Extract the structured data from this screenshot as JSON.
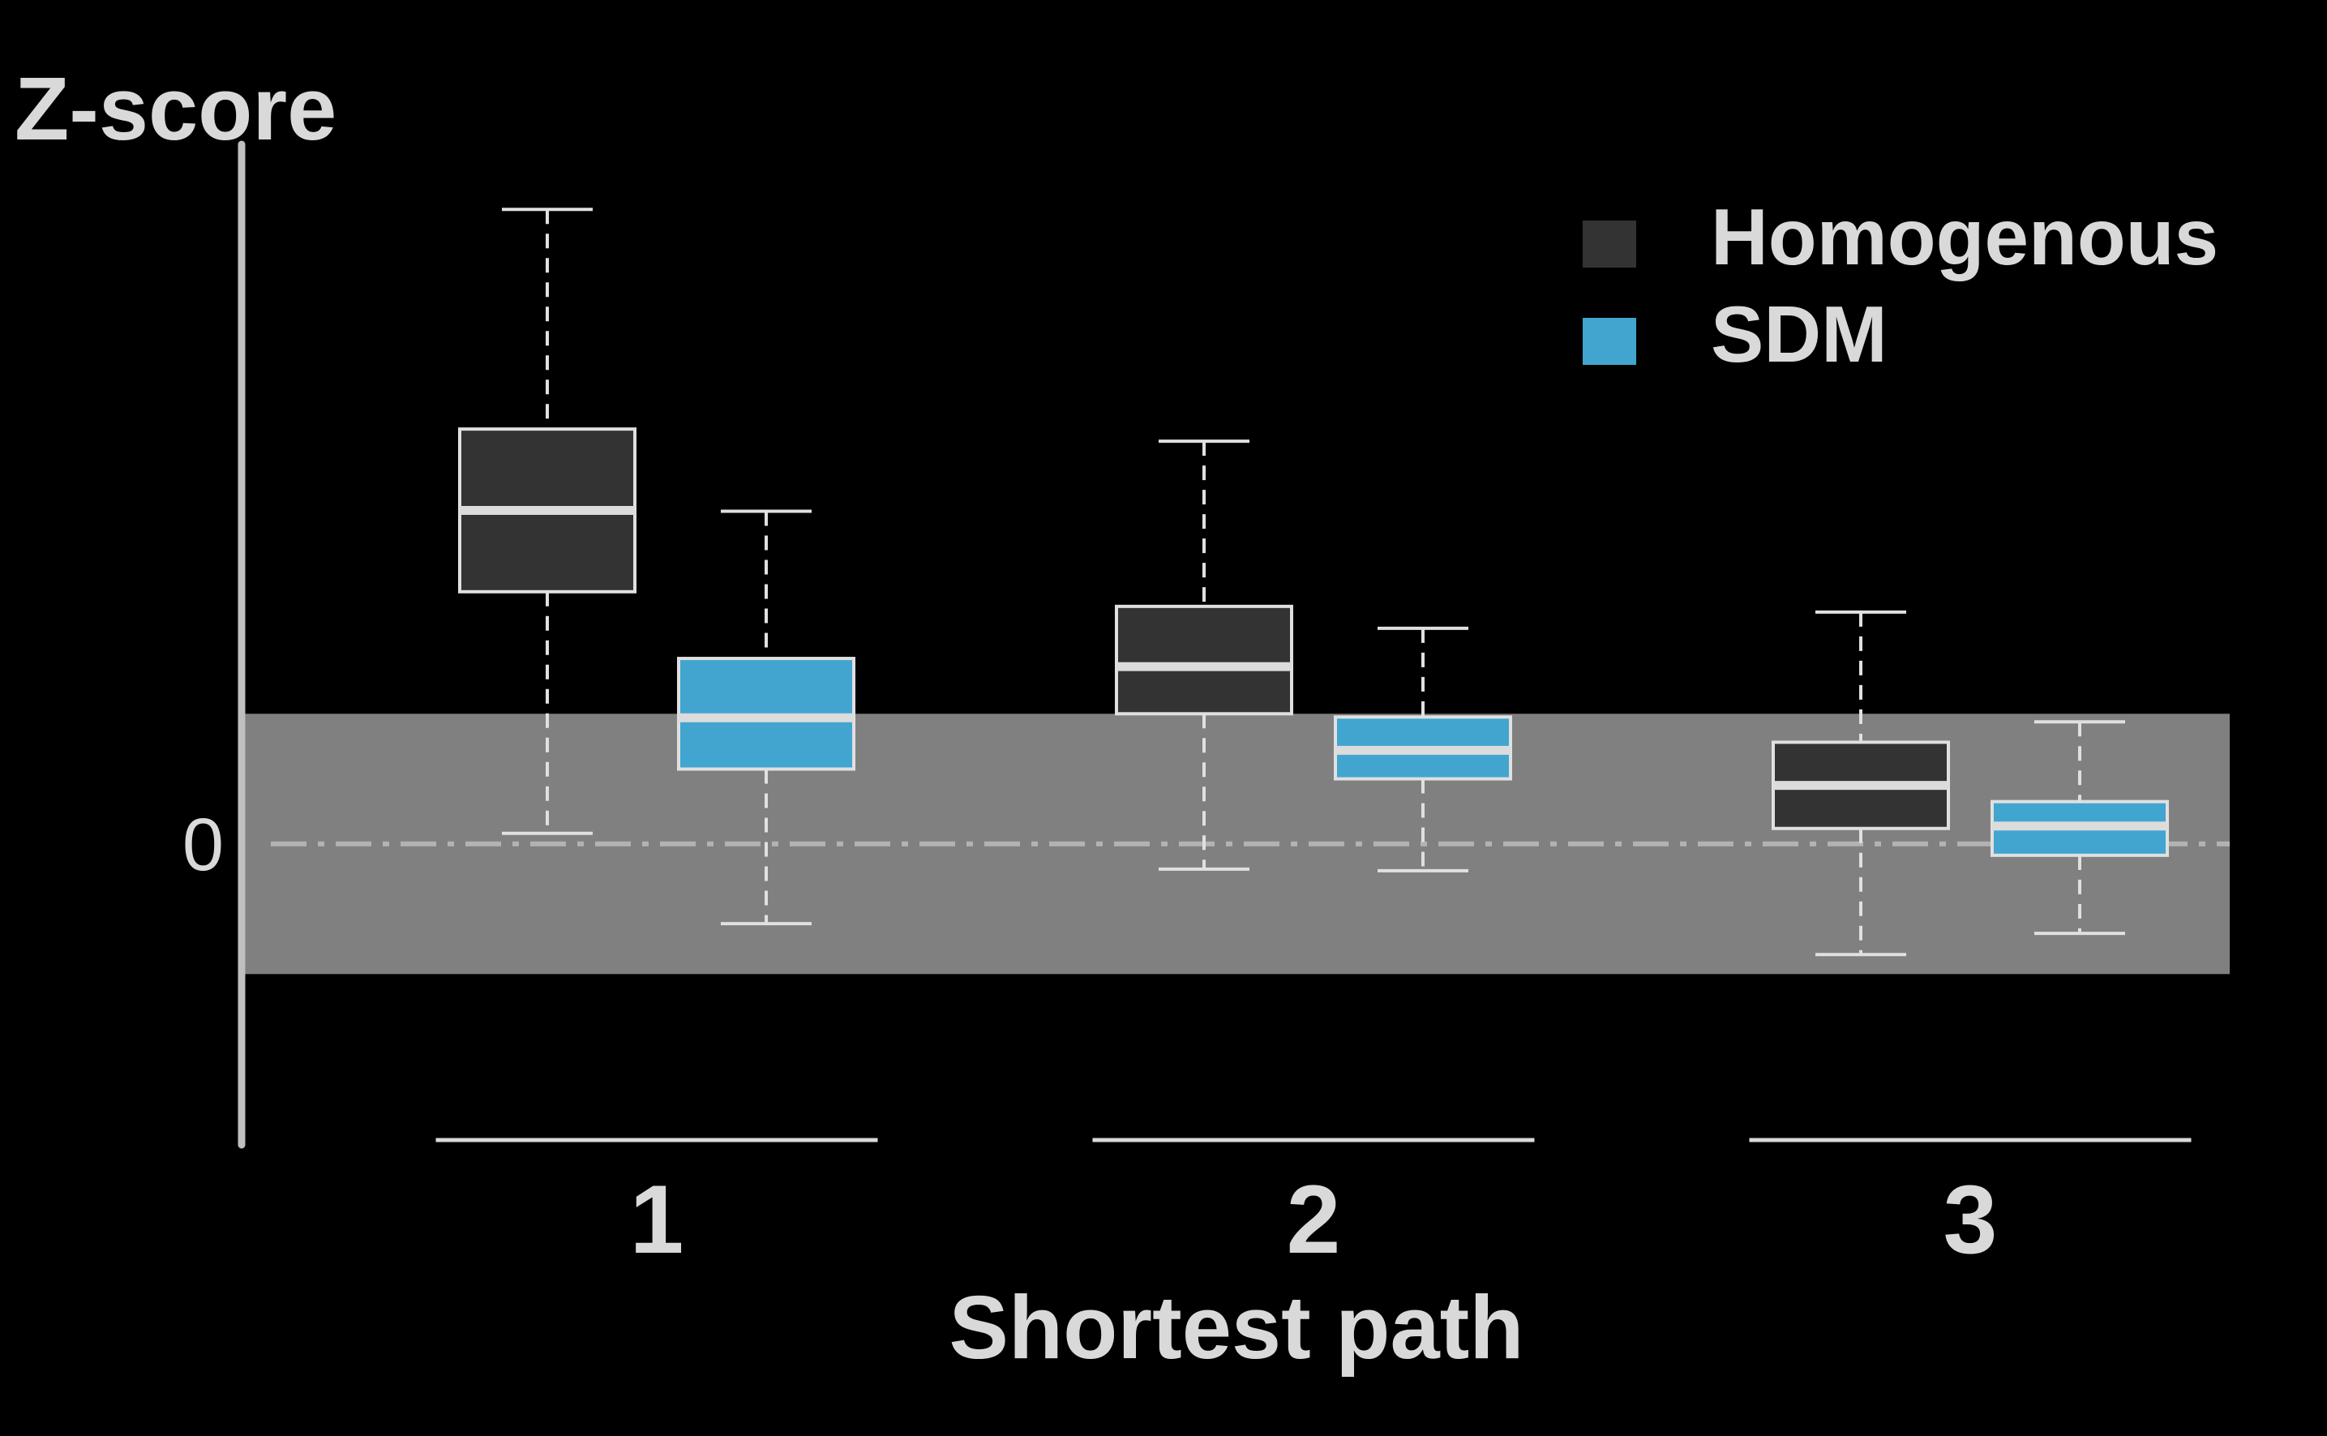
{
  "chart_data": {
    "type": "boxplot",
    "ylabel": "Z-score",
    "xlabel": "Shortest path",
    "categories": [
      "1",
      "2",
      "3"
    ],
    "y_ticks": [
      {
        "value": 0,
        "label": "0"
      }
    ],
    "ylim": [
      -3.7,
      8.6
    ],
    "reference_band": [
      -1.6,
      1.6
    ],
    "reference_line": 0,
    "legend_position": "top-right",
    "series": [
      {
        "name": "Homogenous",
        "color": "#333333",
        "boxes": [
          {
            "min": 0.13,
            "q1": 3.1,
            "median": 4.1,
            "q3": 5.1,
            "max": 7.8
          },
          {
            "min": -0.31,
            "q1": 1.6,
            "median": 2.18,
            "q3": 2.92,
            "max": 4.95
          },
          {
            "min": -1.36,
            "q1": 0.19,
            "median": 0.72,
            "q3": 1.25,
            "max": 2.85
          }
        ]
      },
      {
        "name": "SDM",
        "color": "#42a5cf",
        "boxes": [
          {
            "min": -0.98,
            "q1": 0.92,
            "median": 1.55,
            "q3": 2.28,
            "max": 4.09
          },
          {
            "min": -0.33,
            "q1": 0.8,
            "median": 1.15,
            "q3": 1.56,
            "max": 2.65
          },
          {
            "min": -1.1,
            "q1": -0.14,
            "median": 0.22,
            "q3": 0.52,
            "max": 1.5
          }
        ]
      }
    ]
  }
}
